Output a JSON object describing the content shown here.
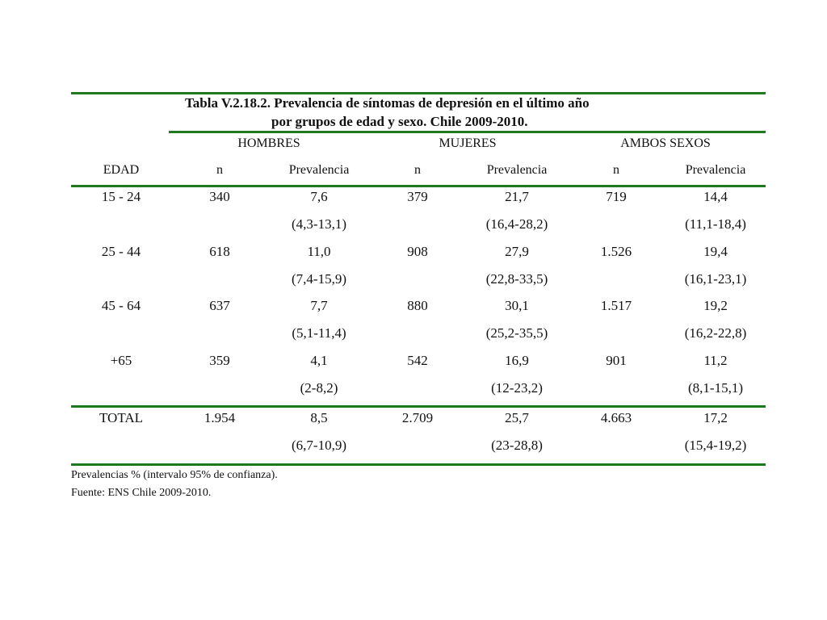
{
  "table": {
    "title_line1": "Tabla V.2.18.2. Prevalencia de síntomas de depresión en el último año",
    "title_line2": "por grupos de edad y sexo.  Chile 2009-2010.",
    "group_headers": [
      "HOMBRES",
      "MUJERES",
      "AMBOS SEXOS"
    ],
    "column_headers": [
      "EDAD",
      "n",
      "Prevalencia",
      "n",
      "Prevalencia",
      "n",
      "Prevalencia"
    ],
    "rows": [
      {
        "edad": "15 - 24",
        "h_n": "340",
        "h_prev": "7,6",
        "h_ci": "(4,3-13,1)",
        "m_n": "379",
        "m_prev": "21,7",
        "m_ci": "(16,4-28,2)",
        "a_n": "719",
        "a_prev": "14,4",
        "a_ci": "(11,1-18,4)"
      },
      {
        "edad": "25 - 44",
        "h_n": "618",
        "h_prev": "11,0",
        "h_ci": "(7,4-15,9)",
        "m_n": "908",
        "m_prev": "27,9",
        "m_ci": "(22,8-33,5)",
        "a_n": "1.526",
        "a_prev": "19,4",
        "a_ci": "(16,1-23,1)"
      },
      {
        "edad": "45 - 64",
        "h_n": "637",
        "h_prev": "7,7",
        "h_ci": "(5,1-11,4)",
        "m_n": "880",
        "m_prev": "30,1",
        "m_ci": "(25,2-35,5)",
        "a_n": "1.517",
        "a_prev": "19,2",
        "a_ci": "(16,2-22,8)"
      },
      {
        "edad": "+65",
        "h_n": "359",
        "h_prev": "4,1",
        "h_ci": "(2-8,2)",
        "m_n": "542",
        "m_prev": "16,9",
        "m_ci": "(12-23,2)",
        "a_n": "901",
        "a_prev": "11,2",
        "a_ci": "(8,1-15,1)"
      }
    ],
    "total": {
      "edad": "TOTAL",
      "h_n": "1.954",
      "h_prev": "8,5",
      "h_ci": "(6,7-10,9)",
      "m_n": "2.709",
      "m_prev": "25,7",
      "m_ci": "(23-28,8)",
      "a_n": "4.663",
      "a_prev": "17,2",
      "a_ci": "(15,4-19,2)"
    },
    "footnotes": [
      "Prevalencias % (intervalo 95% de confianza).",
      "Fuente: ENS Chile 2009-2010."
    ],
    "rule_color": "#1f7a1f"
  }
}
